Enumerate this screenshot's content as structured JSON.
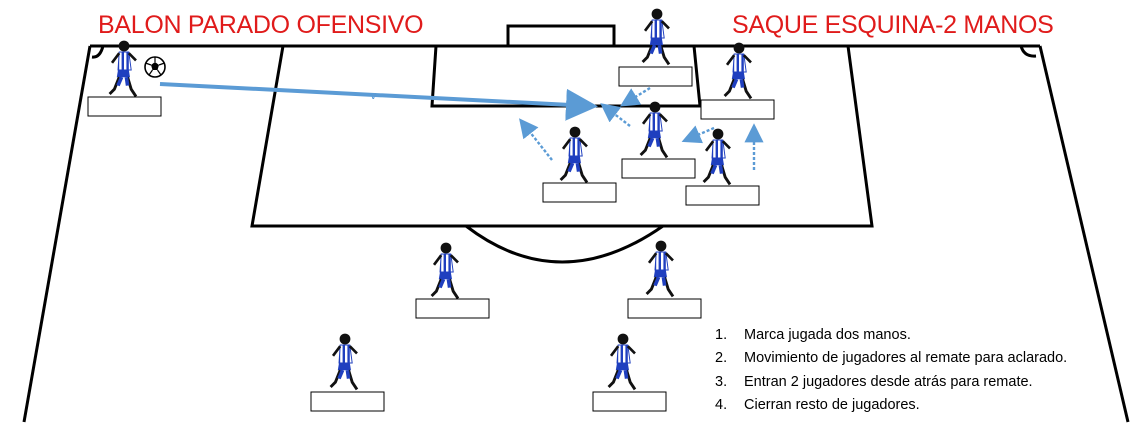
{
  "header": {
    "left_title": "BALON PARADO OFENSIVO",
    "right_title": "SAQUE ESQUINA-2 MANOS",
    "title_color": "#e01b1b"
  },
  "colors": {
    "pitch_lines": "#000000",
    "movement_arrow": "#5b9bd5",
    "kit_primary": "#1f3fbf",
    "kit_stripes": "#ffffff",
    "player_skin": "#111111"
  },
  "ball_icon": "soccer-ball-icon",
  "player_icon": "player-silhouette-icon",
  "players": [
    {
      "id": "corner-taker",
      "name_label": ""
    },
    {
      "id": "top-center",
      "name_label": ""
    },
    {
      "id": "top-right",
      "name_label": ""
    },
    {
      "id": "box-center",
      "name_label": ""
    },
    {
      "id": "box-left",
      "name_label": ""
    },
    {
      "id": "box-right",
      "name_label": ""
    },
    {
      "id": "mid-left",
      "name_label": ""
    },
    {
      "id": "mid-right",
      "name_label": ""
    },
    {
      "id": "back-left",
      "name_label": ""
    },
    {
      "id": "back-right",
      "name_label": ""
    }
  ],
  "notes": [
    {
      "num": "1.",
      "text": "Marca jugada dos manos."
    },
    {
      "num": "2.",
      "text": "Movimiento de jugadores al remate para aclarado."
    },
    {
      "num": "3.",
      "text": "Entran 2 jugadores desde atrás para remate."
    },
    {
      "num": "4.",
      "text": "Cierran resto de jugadores."
    }
  ]
}
